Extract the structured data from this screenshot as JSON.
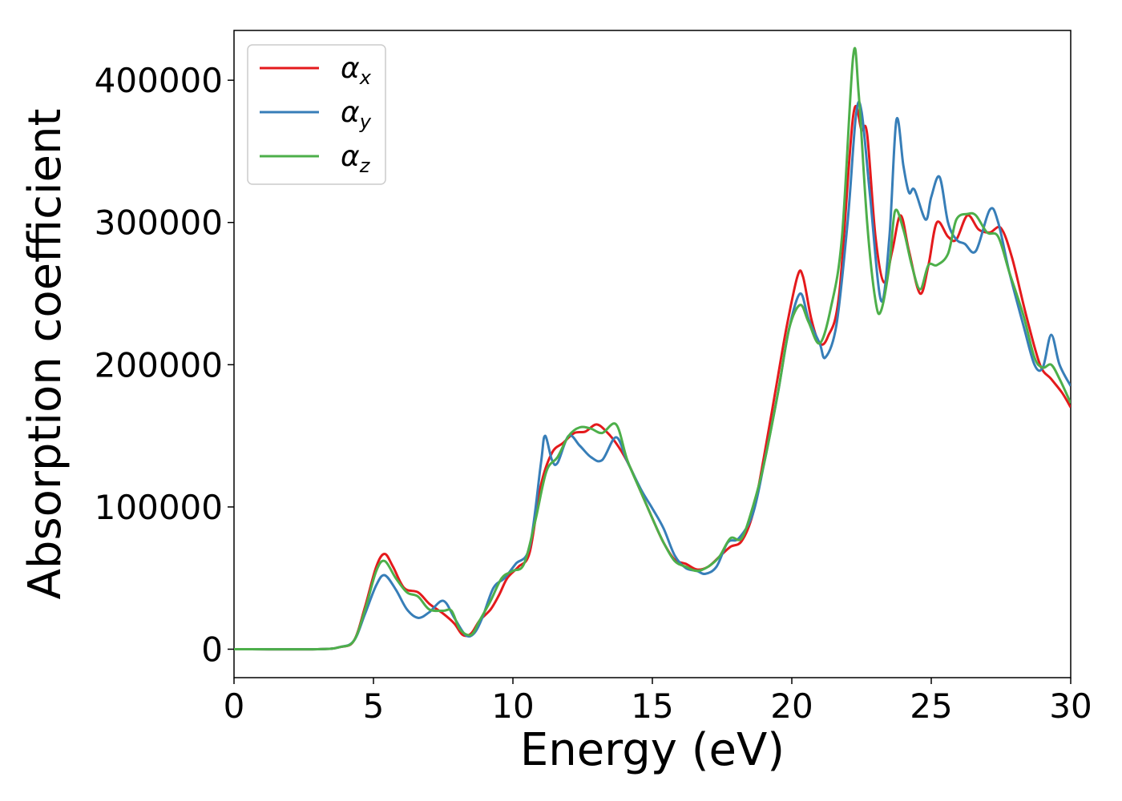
{
  "chart_data": {
    "type": "line",
    "title": "",
    "xlabel": "Energy (eV)",
    "ylabel": "Absorption coefficient",
    "xlim": [
      0,
      30
    ],
    "ylim": [
      -20000,
      435000
    ],
    "xticks": [
      0,
      5,
      10,
      15,
      20,
      25,
      30
    ],
    "yticks": [
      0,
      100000,
      200000,
      300000,
      400000
    ],
    "grid": false,
    "legend": "top-left",
    "series": [
      {
        "name": "α",
        "subscript": "x",
        "color": "#e41a1c",
        "points": [
          [
            0,
            0
          ],
          [
            3,
            0
          ],
          [
            3.8,
            1500
          ],
          [
            4.3,
            6000
          ],
          [
            4.7,
            30000
          ],
          [
            5.1,
            58000
          ],
          [
            5.4,
            67000
          ],
          [
            5.7,
            58000
          ],
          [
            6.1,
            43000
          ],
          [
            6.6,
            40000
          ],
          [
            7.0,
            32000
          ],
          [
            7.5,
            25000
          ],
          [
            7.9,
            18000
          ],
          [
            8.2,
            10000
          ],
          [
            8.5,
            11000
          ],
          [
            8.8,
            20000
          ],
          [
            9.2,
            28000
          ],
          [
            9.5,
            38000
          ],
          [
            9.8,
            50000
          ],
          [
            10.2,
            58000
          ],
          [
            10.6,
            68000
          ],
          [
            11.0,
            115000
          ],
          [
            11.4,
            138000
          ],
          [
            11.8,
            145000
          ],
          [
            12.2,
            152000
          ],
          [
            12.6,
            153000
          ],
          [
            13.0,
            158000
          ],
          [
            13.4,
            152000
          ],
          [
            13.8,
            142000
          ],
          [
            14.2,
            128000
          ],
          [
            14.6,
            110000
          ],
          [
            15.0,
            92000
          ],
          [
            15.4,
            75000
          ],
          [
            15.8,
            63000
          ],
          [
            16.2,
            60000
          ],
          [
            16.6,
            56000
          ],
          [
            17.0,
            58000
          ],
          [
            17.4,
            65000
          ],
          [
            17.8,
            72000
          ],
          [
            18.2,
            76000
          ],
          [
            18.6,
            95000
          ],
          [
            19.0,
            135000
          ],
          [
            19.4,
            180000
          ],
          [
            19.8,
            225000
          ],
          [
            20.2,
            262000
          ],
          [
            20.4,
            262000
          ],
          [
            20.7,
            232000
          ],
          [
            21.0,
            215000
          ],
          [
            21.3,
            220000
          ],
          [
            21.7,
            250000
          ],
          [
            22.2,
            375000
          ],
          [
            22.5,
            365000
          ],
          [
            22.7,
            362000
          ],
          [
            23.0,
            290000
          ],
          [
            23.3,
            258000
          ],
          [
            23.6,
            280000
          ],
          [
            23.9,
            305000
          ],
          [
            24.2,
            280000
          ],
          [
            24.6,
            250000
          ],
          [
            24.9,
            270000
          ],
          [
            25.2,
            300000
          ],
          [
            25.6,
            290000
          ],
          [
            25.9,
            288000
          ],
          [
            26.3,
            305000
          ],
          [
            26.7,
            295000
          ],
          [
            27.1,
            293000
          ],
          [
            27.5,
            296000
          ],
          [
            27.9,
            275000
          ],
          [
            28.4,
            235000
          ],
          [
            28.9,
            200000
          ],
          [
            29.3,
            190000
          ],
          [
            29.7,
            180000
          ],
          [
            30,
            170000
          ]
        ]
      },
      {
        "name": "α",
        "subscript": "y",
        "color": "#377eb8",
        "points": [
          [
            0,
            0
          ],
          [
            3,
            0
          ],
          [
            3.8,
            1500
          ],
          [
            4.3,
            6000
          ],
          [
            4.7,
            25000
          ],
          [
            5.1,
            45000
          ],
          [
            5.4,
            52000
          ],
          [
            5.8,
            42000
          ],
          [
            6.2,
            28000
          ],
          [
            6.6,
            22000
          ],
          [
            7.0,
            26000
          ],
          [
            7.5,
            34000
          ],
          [
            7.9,
            22000
          ],
          [
            8.3,
            10000
          ],
          [
            8.6,
            11000
          ],
          [
            8.9,
            22000
          ],
          [
            9.3,
            43000
          ],
          [
            9.7,
            50000
          ],
          [
            10.1,
            60000
          ],
          [
            10.6,
            72000
          ],
          [
            11.0,
            130000
          ],
          [
            11.15,
            150000
          ],
          [
            11.4,
            133000
          ],
          [
            11.6,
            131000
          ],
          [
            12.0,
            150000
          ],
          [
            12.4,
            143000
          ],
          [
            12.8,
            135000
          ],
          [
            13.2,
            133000
          ],
          [
            13.7,
            149000
          ],
          [
            14.1,
            132000
          ],
          [
            14.6,
            112000
          ],
          [
            15.0,
            99000
          ],
          [
            15.4,
            85000
          ],
          [
            15.8,
            66000
          ],
          [
            16.2,
            57000
          ],
          [
            16.6,
            55000
          ],
          [
            16.9,
            53000
          ],
          [
            17.3,
            58000
          ],
          [
            17.7,
            75000
          ],
          [
            18.1,
            78000
          ],
          [
            18.6,
            95000
          ],
          [
            19.0,
            130000
          ],
          [
            19.5,
            180000
          ],
          [
            19.9,
            225000
          ],
          [
            20.3,
            250000
          ],
          [
            20.6,
            232000
          ],
          [
            21.0,
            215000
          ],
          [
            21.2,
            205000
          ],
          [
            21.6,
            228000
          ],
          [
            22.0,
            300000
          ],
          [
            22.3,
            375000
          ],
          [
            22.5,
            378000
          ],
          [
            22.8,
            320000
          ],
          [
            23.2,
            245000
          ],
          [
            23.5,
            290000
          ],
          [
            23.75,
            372000
          ],
          [
            24.0,
            340000
          ],
          [
            24.2,
            321000
          ],
          [
            24.4,
            323000
          ],
          [
            24.8,
            302000
          ],
          [
            25.0,
            318000
          ],
          [
            25.3,
            332000
          ],
          [
            25.6,
            300000
          ],
          [
            25.9,
            288000
          ],
          [
            26.2,
            285000
          ],
          [
            26.6,
            280000
          ],
          [
            27.1,
            309000
          ],
          [
            27.4,
            300000
          ],
          [
            27.8,
            265000
          ],
          [
            28.3,
            228000
          ],
          [
            28.7,
            200000
          ],
          [
            29.0,
            198000
          ],
          [
            29.3,
            221000
          ],
          [
            29.6,
            200000
          ],
          [
            30,
            185000
          ]
        ]
      },
      {
        "name": "α",
        "subscript": "z",
        "color": "#4daf4a",
        "points": [
          [
            0,
            0
          ],
          [
            3,
            0
          ],
          [
            3.8,
            1500
          ],
          [
            4.3,
            6000
          ],
          [
            4.7,
            28000
          ],
          [
            5.1,
            55000
          ],
          [
            5.4,
            62000
          ],
          [
            5.8,
            50000
          ],
          [
            6.2,
            40000
          ],
          [
            6.6,
            37000
          ],
          [
            7.0,
            28000
          ],
          [
            7.5,
            27000
          ],
          [
            7.8,
            27000
          ],
          [
            8.1,
            14000
          ],
          [
            8.5,
            10000
          ],
          [
            8.8,
            20000
          ],
          [
            9.2,
            34000
          ],
          [
            9.6,
            50000
          ],
          [
            10.0,
            55000
          ],
          [
            10.4,
            60000
          ],
          [
            10.8,
            90000
          ],
          [
            11.2,
            125000
          ],
          [
            11.6,
            135000
          ],
          [
            12.0,
            150000
          ],
          [
            12.4,
            156000
          ],
          [
            12.8,
            155000
          ],
          [
            13.2,
            152000
          ],
          [
            13.7,
            158000
          ],
          [
            14.1,
            133000
          ],
          [
            14.6,
            110000
          ],
          [
            15.0,
            92000
          ],
          [
            15.4,
            75000
          ],
          [
            15.8,
            62000
          ],
          [
            16.2,
            58000
          ],
          [
            16.6,
            55000
          ],
          [
            17.0,
            58000
          ],
          [
            17.4,
            65000
          ],
          [
            17.8,
            78000
          ],
          [
            18.2,
            78000
          ],
          [
            18.6,
            100000
          ],
          [
            19.0,
            130000
          ],
          [
            19.5,
            180000
          ],
          [
            19.9,
            225000
          ],
          [
            20.3,
            242000
          ],
          [
            20.6,
            230000
          ],
          [
            21.0,
            215000
          ],
          [
            21.4,
            240000
          ],
          [
            21.8,
            290000
          ],
          [
            22.2,
            417000
          ],
          [
            22.4,
            390000
          ],
          [
            22.7,
            300000
          ],
          [
            23.0,
            245000
          ],
          [
            23.2,
            238000
          ],
          [
            23.5,
            270000
          ],
          [
            23.7,
            308000
          ],
          [
            24.0,
            295000
          ],
          [
            24.3,
            270000
          ],
          [
            24.6,
            253000
          ],
          [
            24.9,
            270000
          ],
          [
            25.2,
            270000
          ],
          [
            25.6,
            278000
          ],
          [
            25.9,
            302000
          ],
          [
            26.3,
            306000
          ],
          [
            26.6,
            305000
          ],
          [
            27.0,
            293000
          ],
          [
            27.4,
            290000
          ],
          [
            27.8,
            265000
          ],
          [
            28.3,
            235000
          ],
          [
            28.7,
            205000
          ],
          [
            29.0,
            198000
          ],
          [
            29.3,
            200000
          ],
          [
            29.6,
            190000
          ],
          [
            30,
            173000
          ]
        ]
      }
    ]
  }
}
